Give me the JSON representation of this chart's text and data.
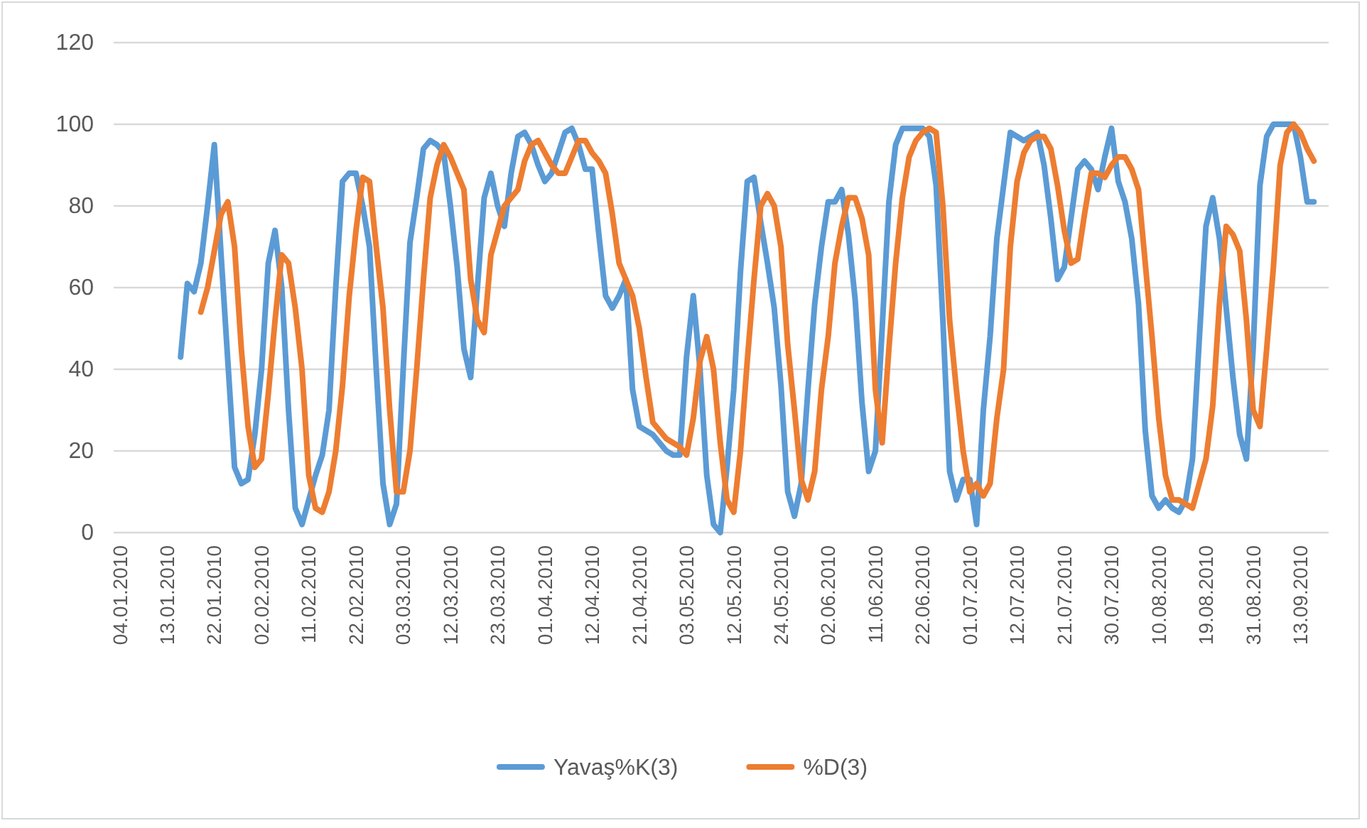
{
  "chart_data": {
    "type": "line",
    "categories": [
      "04.01.2010",
      null,
      null,
      null,
      null,
      null,
      null,
      "13.01.2010",
      null,
      null,
      null,
      null,
      null,
      null,
      "22.01.2010",
      null,
      null,
      null,
      null,
      null,
      null,
      "02.02.2010",
      null,
      null,
      null,
      null,
      null,
      null,
      "11.02.2010",
      null,
      null,
      null,
      null,
      null,
      null,
      "22.02.2010",
      null,
      null,
      null,
      null,
      null,
      null,
      "03.03.2010",
      null,
      null,
      null,
      null,
      null,
      null,
      "12.03.2010",
      null,
      null,
      null,
      null,
      null,
      null,
      "23.03.2010",
      null,
      null,
      null,
      null,
      null,
      null,
      "01.04.2010",
      null,
      null,
      null,
      null,
      null,
      null,
      "12.04.2010",
      null,
      null,
      null,
      null,
      null,
      null,
      "21.04.2010",
      null,
      null,
      null,
      null,
      null,
      null,
      "03.05.2010",
      null,
      null,
      null,
      null,
      null,
      null,
      "12.05.2010",
      null,
      null,
      null,
      null,
      null,
      null,
      "24.05.2010",
      null,
      null,
      null,
      null,
      null,
      null,
      "02.06.2010",
      null,
      null,
      null,
      null,
      null,
      null,
      "11.06.2010",
      null,
      null,
      null,
      null,
      null,
      null,
      "22.06.2010",
      null,
      null,
      null,
      null,
      null,
      null,
      "01.07.2010",
      null,
      null,
      null,
      null,
      null,
      null,
      "12.07.2010",
      null,
      null,
      null,
      null,
      null,
      null,
      "21.07.2010",
      null,
      null,
      null,
      null,
      null,
      null,
      "30.07.2010",
      null,
      null,
      null,
      null,
      null,
      null,
      "10.08.2010",
      null,
      null,
      null,
      null,
      null,
      null,
      "19.08.2010",
      null,
      null,
      null,
      null,
      null,
      null,
      "31.08.2010",
      null,
      null,
      null,
      null,
      null,
      null,
      "13.09.2010",
      null,
      null
    ],
    "series": [
      {
        "name": "Yavaş%K(3)",
        "color": "#5b9bd5",
        "values": [
          null,
          null,
          null,
          null,
          null,
          null,
          null,
          null,
          null,
          43,
          61,
          59,
          66,
          80,
          95,
          68,
          42,
          16,
          12,
          13,
          24,
          40,
          66,
          74,
          60,
          30,
          6,
          2,
          8,
          14,
          19,
          30,
          60,
          86,
          88,
          88,
          80,
          70,
          40,
          12,
          2,
          7,
          40,
          71,
          82,
          94,
          96,
          95,
          93,
          80,
          65,
          45,
          38,
          60,
          82,
          88,
          80,
          75,
          88,
          97,
          98,
          95,
          90,
          86,
          88,
          93,
          98,
          99,
          95,
          89,
          89,
          73,
          58,
          55,
          58,
          62,
          35,
          26,
          25,
          24,
          22,
          20,
          19,
          19,
          43,
          58,
          40,
          14,
          2,
          0,
          16,
          35,
          64,
          86,
          87,
          76,
          66,
          55,
          36,
          10,
          4,
          12,
          35,
          56,
          70,
          81,
          81,
          84,
          73,
          57,
          32,
          15,
          20,
          50,
          81,
          95,
          99,
          99,
          99,
          99,
          97,
          85,
          52,
          15,
          8,
          13,
          13,
          2,
          30,
          48,
          72,
          85,
          98,
          97,
          96,
          97,
          98,
          90,
          77,
          62,
          65,
          77,
          89,
          91,
          89,
          84,
          92,
          99,
          86,
          81,
          72,
          56,
          25,
          9,
          6,
          8,
          6,
          5,
          8,
          18,
          47,
          75,
          82,
          72,
          55,
          38,
          24,
          18,
          45,
          85,
          97,
          100,
          100,
          100,
          100,
          92,
          81,
          81
        ]
      },
      {
        "name": "%D(3)",
        "color": "#ed7d31",
        "values": [
          null,
          null,
          null,
          null,
          null,
          null,
          null,
          null,
          null,
          null,
          null,
          null,
          54,
          60,
          69,
          78,
          81,
          70,
          45,
          26,
          16,
          18,
          34,
          52,
          68,
          66,
          55,
          40,
          14,
          6,
          5,
          10,
          20,
          36,
          58,
          74,
          87,
          86,
          70,
          55,
          30,
          10,
          10,
          20,
          40,
          62,
          82,
          90,
          95,
          92,
          88,
          84,
          62,
          52,
          49,
          68,
          74,
          80,
          82,
          84,
          91,
          95,
          96,
          93,
          90,
          88,
          88,
          92,
          96,
          96,
          93,
          91,
          88,
          78,
          66,
          62,
          58,
          50,
          38,
          27,
          25,
          23,
          22,
          21,
          19,
          28,
          42,
          48,
          40,
          22,
          8,
          5,
          20,
          42,
          62,
          80,
          83,
          80,
          70,
          46,
          30,
          13,
          8,
          15,
          35,
          48,
          66,
          75,
          82,
          82,
          77,
          68,
          35,
          22,
          45,
          66,
          82,
          92,
          96,
          98,
          99,
          98,
          80,
          52,
          35,
          20,
          10,
          12,
          9,
          12,
          28,
          40,
          70,
          86,
          93,
          96,
          97,
          97,
          94,
          85,
          74,
          66,
          67,
          78,
          88,
          88,
          87,
          90,
          92,
          92,
          89,
          84,
          66,
          48,
          28,
          14,
          8,
          8,
          7,
          6,
          12,
          18,
          31,
          56,
          75,
          73,
          69,
          52,
          30,
          26,
          45,
          65,
          90,
          98,
          100,
          98,
          94,
          91
        ]
      }
    ],
    "ylim": [
      0,
      120
    ],
    "yticks": [
      0,
      20,
      40,
      60,
      80,
      100,
      120
    ],
    "grid": "y",
    "legend": "bottom",
    "marker": "none",
    "line_style": "solid"
  }
}
